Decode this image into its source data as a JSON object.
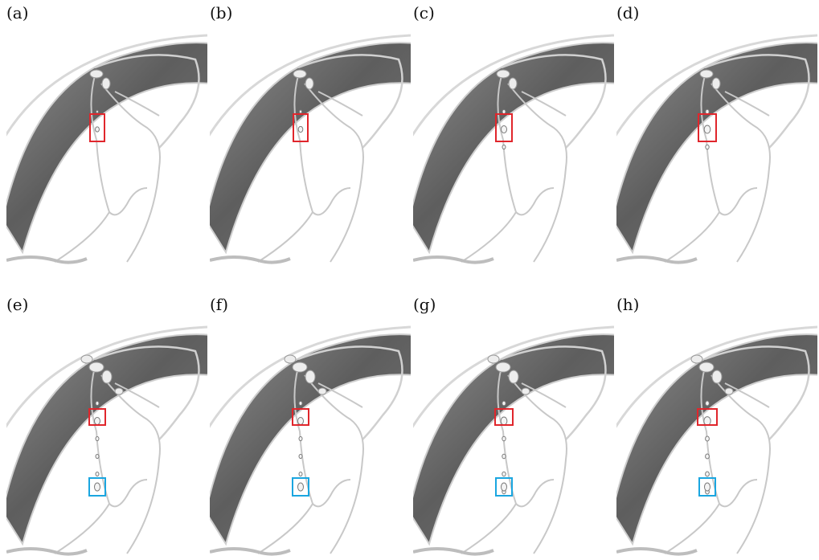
{
  "figure": {
    "panels": [
      {
        "label": "(a)",
        "droplet_scale": 0.7,
        "drop_count": 2,
        "extra_blob": false,
        "blue_box": false
      },
      {
        "label": "(b)",
        "droplet_scale": 0.8,
        "drop_count": 2,
        "extra_blob": false,
        "blue_box": false
      },
      {
        "label": "(c)",
        "droplet_scale": 1.0,
        "drop_count": 3,
        "extra_blob": false,
        "blue_box": false
      },
      {
        "label": "(d)",
        "droplet_scale": 1.1,
        "drop_count": 3,
        "extra_blob": false,
        "blue_box": false
      },
      {
        "label": "(e)",
        "droplet_scale": 1.0,
        "drop_count": 5,
        "extra_blob": true,
        "blue_box": true
      },
      {
        "label": "(f)",
        "droplet_scale": 1.0,
        "drop_count": 5,
        "extra_blob": true,
        "blue_box": true
      },
      {
        "label": "(g)",
        "droplet_scale": 1.1,
        "drop_count": 6,
        "extra_blob": true,
        "blue_box": true
      },
      {
        "label": "(h)",
        "droplet_scale": 1.2,
        "drop_count": 6,
        "extra_blob": true,
        "blue_box": true
      }
    ],
    "colors": {
      "band_dark": "#5a5a5a",
      "band_mid": "#8a8a8a",
      "band_light": "#bdbdbd",
      "highlight_red": "#e0262c",
      "highlight_blue": "#1aa6e0",
      "filament": "#c8c8c8"
    }
  }
}
